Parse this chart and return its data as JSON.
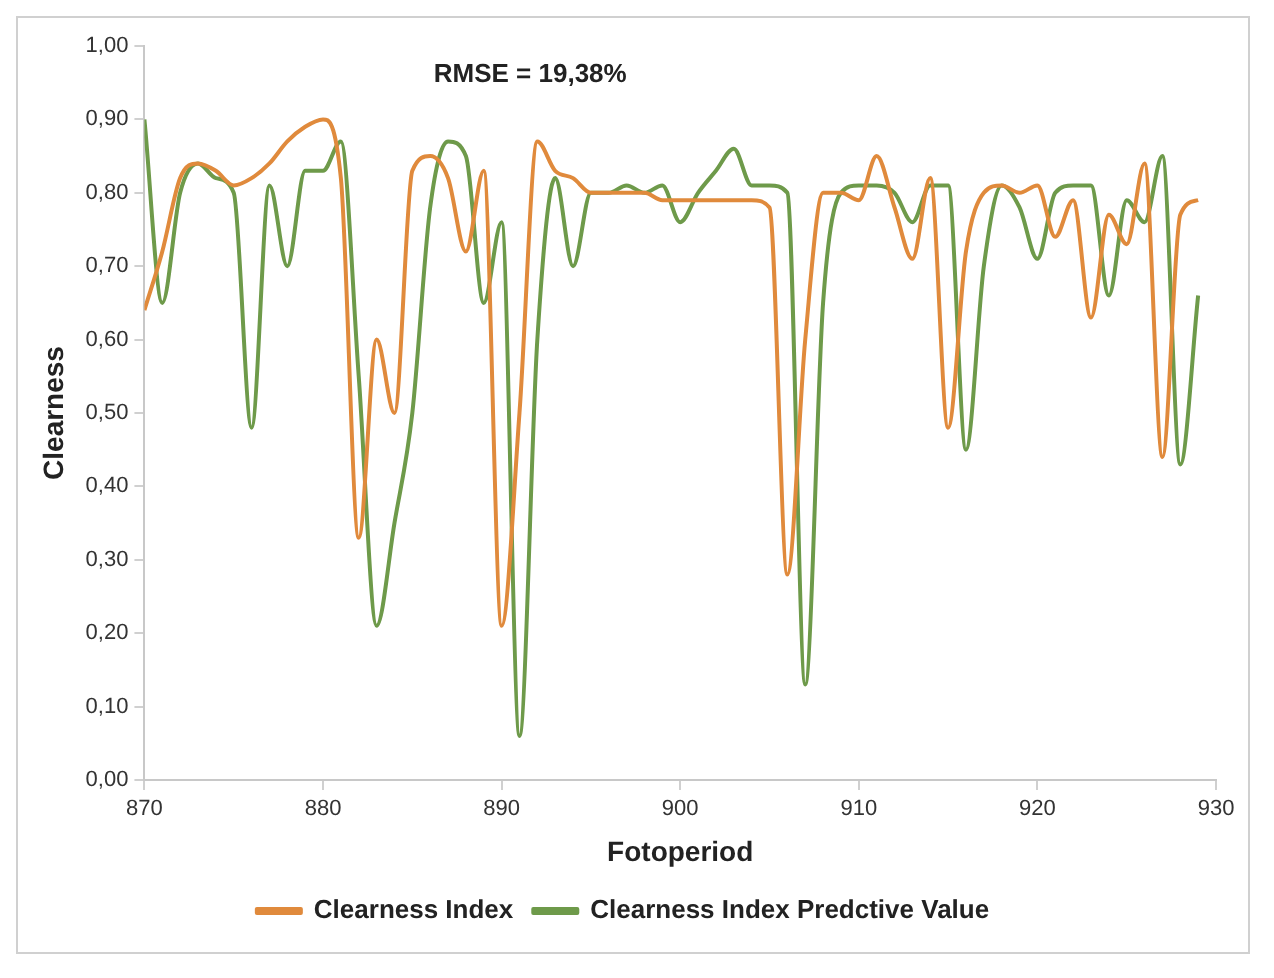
{
  "chart_data": {
    "type": "line",
    "xlabel": "Fotoperiod",
    "ylabel": "Clearness",
    "annotations": [
      "RMSE = 19,38%"
    ],
    "x": [
      870,
      871,
      872,
      873,
      874,
      875,
      876,
      877,
      878,
      879,
      880,
      881,
      882,
      883,
      884,
      885,
      886,
      887,
      888,
      889,
      890,
      891,
      892,
      893,
      894,
      895,
      896,
      897,
      898,
      899,
      900,
      901,
      902,
      903,
      904,
      905,
      906,
      907,
      908,
      909,
      910,
      911,
      912,
      913,
      914,
      915,
      916,
      917,
      918,
      919,
      920,
      921,
      922,
      923,
      924,
      925,
      926,
      927,
      928,
      929
    ],
    "series": [
      {
        "name": "Clearness Index",
        "color": "#e08a3c",
        "values": [
          0.64,
          0.72,
          0.82,
          0.84,
          0.83,
          0.81,
          0.82,
          0.84,
          0.87,
          0.89,
          0.9,
          0.82,
          0.33,
          0.6,
          0.5,
          0.83,
          0.85,
          0.82,
          0.72,
          0.83,
          0.21,
          0.5,
          0.87,
          0.83,
          0.82,
          0.8,
          0.8,
          0.8,
          0.8,
          0.79,
          0.79,
          0.79,
          0.79,
          0.79,
          0.79,
          0.78,
          0.28,
          0.6,
          0.8,
          0.8,
          0.79,
          0.85,
          0.78,
          0.71,
          0.82,
          0.48,
          0.72,
          0.8,
          0.81,
          0.8,
          0.81,
          0.74,
          0.79,
          0.63,
          0.77,
          0.73,
          0.84,
          0.44,
          0.77,
          0.79
        ]
      },
      {
        "name": "Clearness Index Predctive Value",
        "color": "#6e9a4a",
        "values": [
          0.9,
          0.65,
          0.8,
          0.84,
          0.82,
          0.8,
          0.48,
          0.81,
          0.7,
          0.83,
          0.83,
          0.87,
          0.55,
          0.21,
          0.35,
          0.5,
          0.78,
          0.87,
          0.85,
          0.65,
          0.76,
          0.06,
          0.6,
          0.82,
          0.7,
          0.8,
          0.8,
          0.81,
          0.8,
          0.81,
          0.76,
          0.8,
          0.83,
          0.86,
          0.81,
          0.81,
          0.8,
          0.13,
          0.65,
          0.8,
          0.81,
          0.81,
          0.8,
          0.76,
          0.81,
          0.81,
          0.45,
          0.7,
          0.81,
          0.78,
          0.71,
          0.8,
          0.81,
          0.81,
          0.66,
          0.79,
          0.76,
          0.85,
          0.43,
          0.66
        ]
      }
    ],
    "xlim": [
      870,
      930
    ],
    "xticks": [
      870,
      880,
      890,
      900,
      910,
      920,
      930
    ],
    "ylim": [
      0,
      1
    ],
    "yticks": [
      {
        "value": 0,
        "label": "0,00"
      },
      {
        "value": 0.1,
        "label": "0,10"
      },
      {
        "value": 0.2,
        "label": "0,20"
      },
      {
        "value": 0.3,
        "label": "0,30"
      },
      {
        "value": 0.4,
        "label": "0,40"
      },
      {
        "value": 0.5,
        "label": "0,50"
      },
      {
        "value": 0.6,
        "label": "0,60"
      },
      {
        "value": 0.7,
        "label": "0,70"
      },
      {
        "value": 0.8,
        "label": "0,80"
      },
      {
        "value": 0.9,
        "label": "0,90"
      },
      {
        "value": 1,
        "label": "1,00"
      }
    ],
    "grid": false,
    "legend": "bottom",
    "marker": "none",
    "line_style": "solid"
  }
}
